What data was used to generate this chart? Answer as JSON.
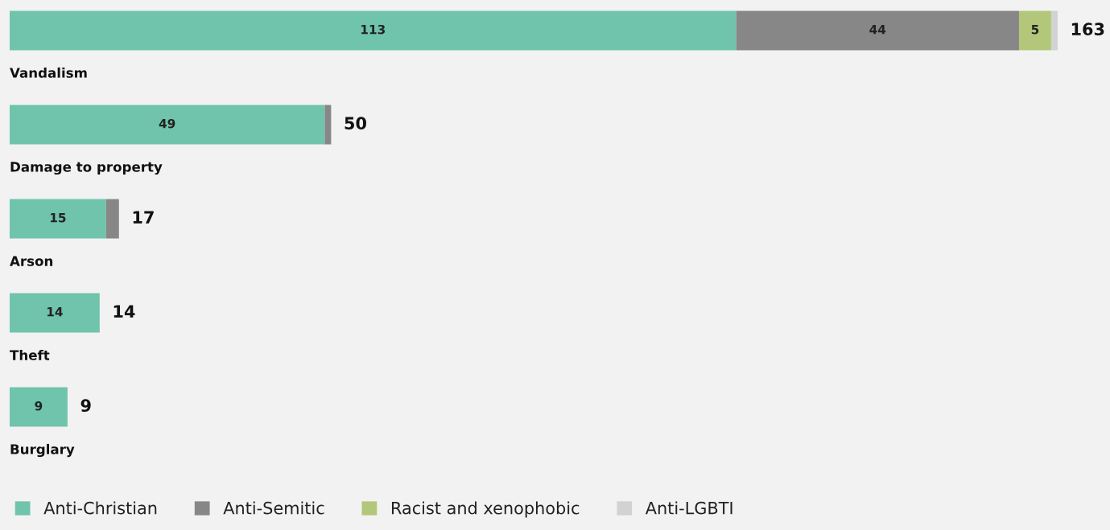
{
  "chart_data": {
    "type": "bar",
    "orientation": "horizontal",
    "stacked": true,
    "categories": [
      "Vandalism",
      "Damage to property",
      "Arson",
      "Theft",
      "Burglary"
    ],
    "series": [
      {
        "name": "Anti-Christian",
        "color": "#6fc4ab",
        "values": [
          113,
          49,
          15,
          14,
          9
        ],
        "value_labels": [
          "113",
          "49",
          "15",
          "14",
          "9"
        ]
      },
      {
        "name": "Anti-Semitic",
        "color": "#878787",
        "values": [
          44,
          1,
          2,
          0,
          0
        ],
        "value_labels": [
          "44",
          null,
          null,
          null,
          null
        ]
      },
      {
        "name": "Racist and xenophobic",
        "color": "#b3c77a",
        "values": [
          5,
          0,
          0,
          0,
          0
        ],
        "value_labels": [
          "5",
          null,
          null,
          null,
          null
        ]
      },
      {
        "name": "Anti-LGBTI",
        "color": "#d0d3d2",
        "values": [
          1,
          0,
          0,
          0,
          0
        ],
        "value_labels": [
          null,
          null,
          null,
          null,
          null
        ]
      }
    ],
    "totals": [
      "163",
      "50",
      "17",
      "14",
      "9"
    ],
    "legend": "bottom"
  }
}
